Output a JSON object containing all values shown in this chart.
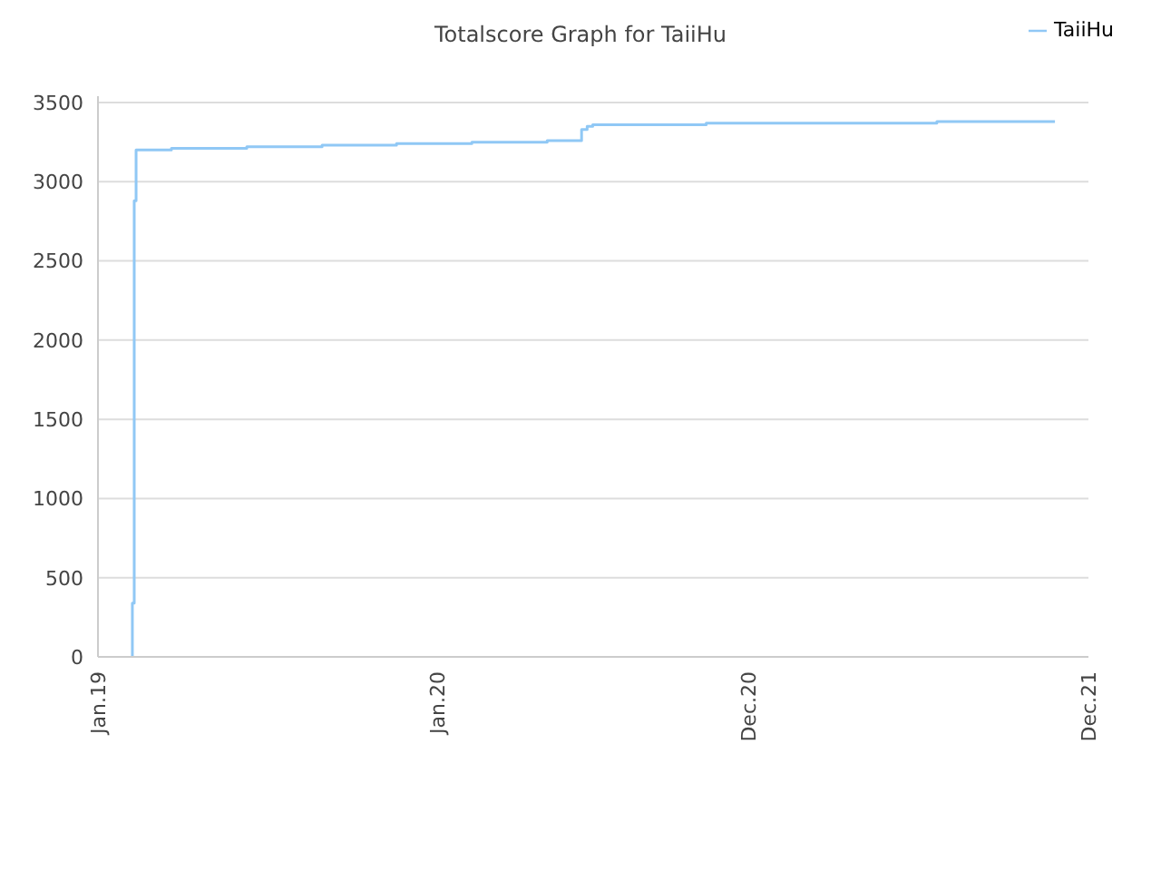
{
  "chart_data": {
    "type": "step",
    "title": "Totalscore Graph for TaiiHu",
    "series": [
      {
        "name": "TaiiHu",
        "color": "#90c8f5",
        "x": [
          "2019-02-06",
          "2019-02-07",
          "2019-02-09",
          "2019-02-11",
          "2019-03-21",
          "2019-06-10",
          "2019-08-30",
          "2019-11-18",
          "2020-02-07",
          "2020-04-28",
          "2020-06-04",
          "2020-06-10",
          "2020-06-16",
          "2020-10-16",
          "2021-06-21",
          "2021-10-26"
        ],
        "values": [
          0,
          340,
          2880,
          3200,
          3210,
          3220,
          3230,
          3240,
          3250,
          3260,
          3330,
          3350,
          3360,
          3370,
          3380,
          3380
        ]
      }
    ],
    "xlim": [
      "2019-01-01",
      "2021-12-01"
    ],
    "xticks": [
      {
        "value": "2019-01-01",
        "label": "Jan.19"
      },
      {
        "value": "2020-01-01",
        "label": "Jan.20"
      },
      {
        "value": "2020-12-01",
        "label": "Dec.20"
      },
      {
        "value": "2021-12-01",
        "label": "Dec.21"
      }
    ],
    "ylim": [
      0,
      3540
    ],
    "yticks": [
      0,
      500,
      1000,
      1500,
      2000,
      2500,
      3000,
      3500
    ],
    "grid": "y",
    "legend": "top right",
    "marker": "none",
    "line_style": "solid"
  }
}
